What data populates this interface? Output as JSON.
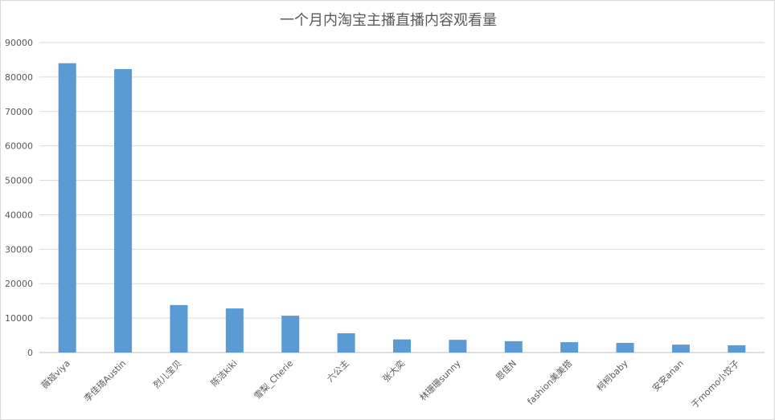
{
  "chart_data": {
    "type": "bar",
    "title": "一个月内淘宝主播直播内容观看量",
    "xlabel": "",
    "ylabel": "",
    "ylim": [
      0,
      90000
    ],
    "yticks": [
      0,
      10000,
      20000,
      30000,
      40000,
      50000,
      60000,
      70000,
      80000,
      90000
    ],
    "grid": true,
    "legend": "none",
    "categories": [
      "薇娅viya",
      "李佳琦Austin",
      "烈儿宝贝",
      "陈洁kiki",
      "雪梨_Cherie",
      "六公主",
      "张大奕",
      "林珊珊sunny",
      "恩佳N",
      "fashion美美搭",
      "柯柯baby",
      "安安anan",
      "于momo小饺子"
    ],
    "values": [
      84000,
      82300,
      13800,
      12800,
      10700,
      5600,
      3800,
      3700,
      3300,
      3000,
      2800,
      2300,
      2100
    ],
    "bar_color": "#5b9bd5"
  }
}
